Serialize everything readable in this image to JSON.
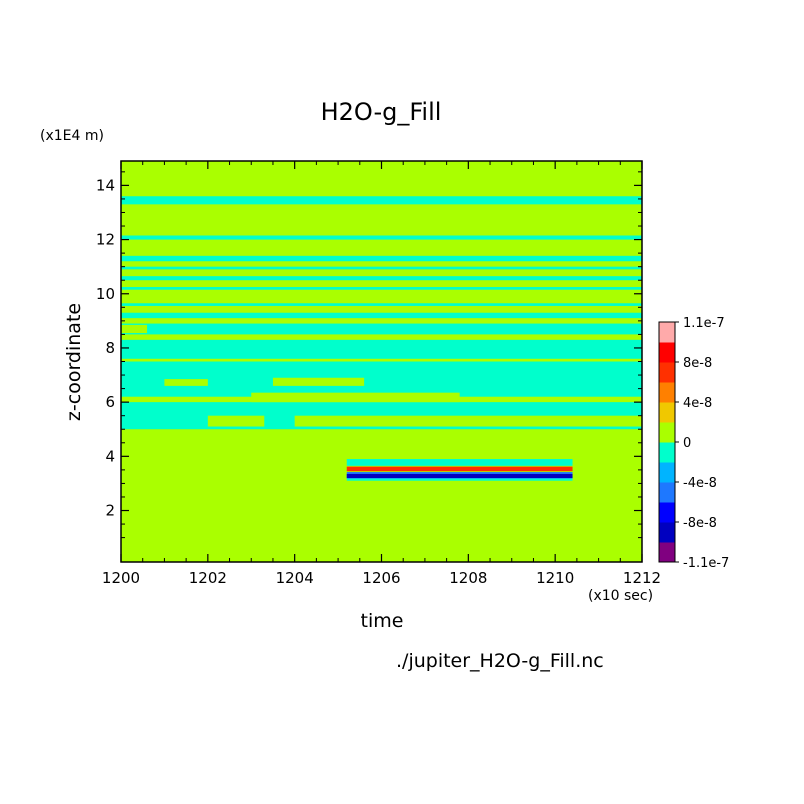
{
  "chart_data": {
    "type": "heatmap",
    "title": "H2O-g_Fill",
    "xlabel": "time",
    "ylabel": "z-coordinate",
    "x_unit": "(x10 sec)",
    "y_unit": "(x1E4 m)",
    "xlim": [
      1200,
      1212
    ],
    "ylim": [
      0.1,
      14.9
    ],
    "x_ticks": [
      "1200",
      "1202",
      "1204",
      "1206",
      "1208",
      "1210",
      "1212"
    ],
    "y_ticks": [
      "2",
      "4",
      "6",
      "8",
      "10",
      "12",
      "14"
    ],
    "background_value": 0,
    "bands": [
      {
        "y": [
          13.3,
          13.6
        ],
        "value": -2e-09
      },
      {
        "y": [
          12.0,
          12.15
        ],
        "value": -2e-09
      },
      {
        "y": [
          11.2,
          11.4
        ],
        "value": -2e-09
      },
      {
        "y": [
          10.9,
          11.0
        ],
        "value": -2e-09
      },
      {
        "y": [
          10.5,
          10.65
        ],
        "value": -2e-09
      },
      {
        "y": [
          10.15,
          10.25
        ],
        "value": -2e-09
      },
      {
        "y": [
          9.55,
          9.65
        ],
        "value": -2e-09
      },
      {
        "y": [
          9.1,
          9.3
        ],
        "value": -2e-09
      },
      {
        "y": [
          8.5,
          8.9
        ],
        "value": -2e-09
      },
      {
        "y": [
          7.6,
          8.3
        ],
        "value": -2e-09
      },
      {
        "y": [
          6.2,
          7.5
        ],
        "value": -2e-09
      },
      {
        "y": [
          5.0,
          6.0
        ],
        "value": -2e-09
      }
    ],
    "patches": [
      {
        "x": [
          1200,
          1200.6
        ],
        "y": [
          8.55,
          8.85
        ],
        "value": 0
      },
      {
        "x": [
          1201.0,
          1202.0
        ],
        "y": [
          6.6,
          6.85
        ],
        "value": 0
      },
      {
        "x": [
          1203.5,
          1205.6
        ],
        "y": [
          6.6,
          6.9
        ],
        "value": 0
      },
      {
        "x": [
          1203.0,
          1207.8
        ],
        "y": [
          6.0,
          6.35
        ],
        "value": 0
      },
      {
        "x": [
          1202.0,
          1203.3
        ],
        "y": [
          5.1,
          5.5
        ],
        "value": 0
      },
      {
        "x": [
          1204.0,
          1212.0
        ],
        "y": [
          5.1,
          5.5
        ],
        "value": 0
      }
    ],
    "anomaly": {
      "x": [
        1205.2,
        1210.4
      ],
      "layers": [
        {
          "y": [
            3.65,
            3.9
          ],
          "value": -2e-09
        },
        {
          "y": [
            3.1,
            3.35
          ],
          "value": -2e-09
        },
        {
          "y": [
            3.45,
            3.62
          ],
          "value": 6e-08
        },
        {
          "y": [
            3.18,
            3.42
          ],
          "value": -4e-08
        },
        {
          "y": [
            3.2,
            3.35
          ],
          "value": -8e-08
        }
      ]
    },
    "colorbar": {
      "labels": [
        "1.1e-7",
        "8e-8",
        "4e-8",
        "0",
        "-4e-8",
        "-8e-8",
        "-1.1e-7"
      ],
      "colors": [
        "#800080",
        "#0000c0",
        "#0000ff",
        "#1e78ff",
        "#00b4ff",
        "#00ffcc",
        "#aaff00",
        "#f0c800",
        "#ff8000",
        "#ff3000",
        "#ff0000",
        "#ffaaaa"
      ]
    },
    "grid": false,
    "legend": "colorbar right"
  },
  "labels": {
    "title": "H2O-g_Fill",
    "y_unit": "(x1E4 m)",
    "x_unit": "(x10 sec)",
    "x_label": "time",
    "y_label": "z-coordinate",
    "file_name": "./jupiter_H2O-g_Fill.nc"
  }
}
